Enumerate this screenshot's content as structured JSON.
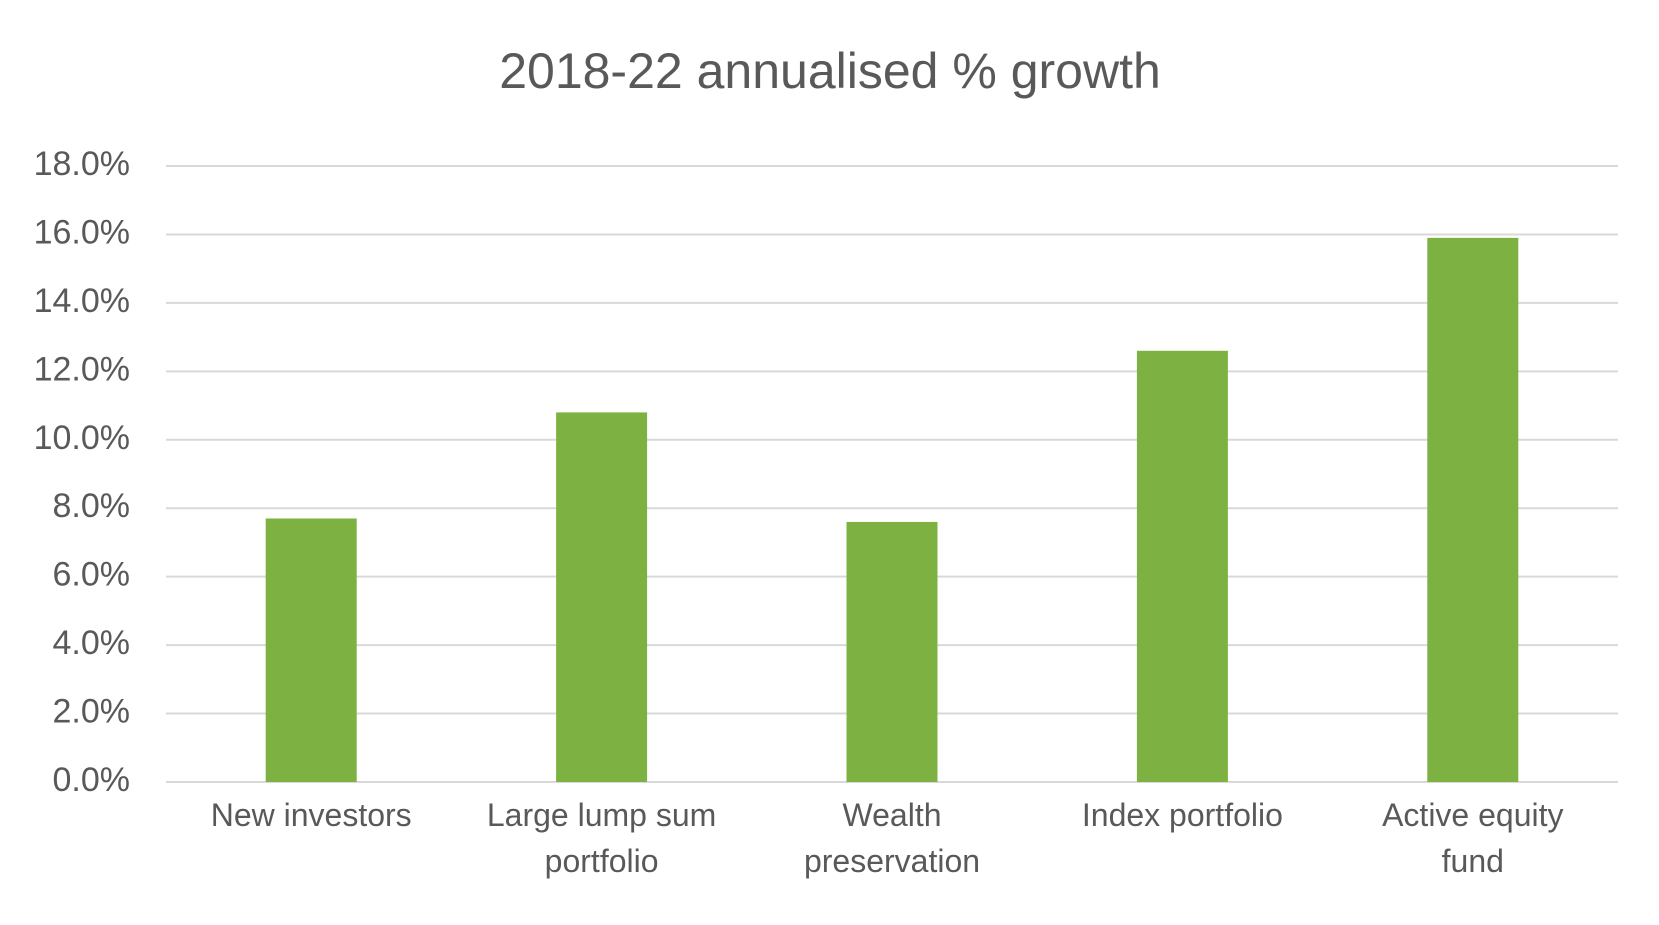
{
  "chart_data": {
    "type": "bar",
    "title": "2018-22 annualised % growth",
    "categories": [
      "New investors",
      "Large lump sum portfolio",
      "Wealth preservation",
      "Index portfolio",
      "Active equity fund"
    ],
    "values": [
      7.7,
      10.8,
      7.6,
      12.6,
      15.9
    ],
    "color": "#7db243",
    "ylim": [
      0,
      18
    ],
    "yticks": [
      {
        "value": 0,
        "label": "0.0%"
      },
      {
        "value": 2,
        "label": "2.0%"
      },
      {
        "value": 4,
        "label": "4.0%"
      },
      {
        "value": 6,
        "label": "6.0%"
      },
      {
        "value": 8,
        "label": "8.0%"
      },
      {
        "value": 10,
        "label": "10.0%"
      },
      {
        "value": 12,
        "label": "12.0%"
      },
      {
        "value": 14,
        "label": "14.0%"
      },
      {
        "value": 16,
        "label": "16.0%"
      },
      {
        "value": 18,
        "label": "18.0%"
      }
    ],
    "grid": true
  }
}
